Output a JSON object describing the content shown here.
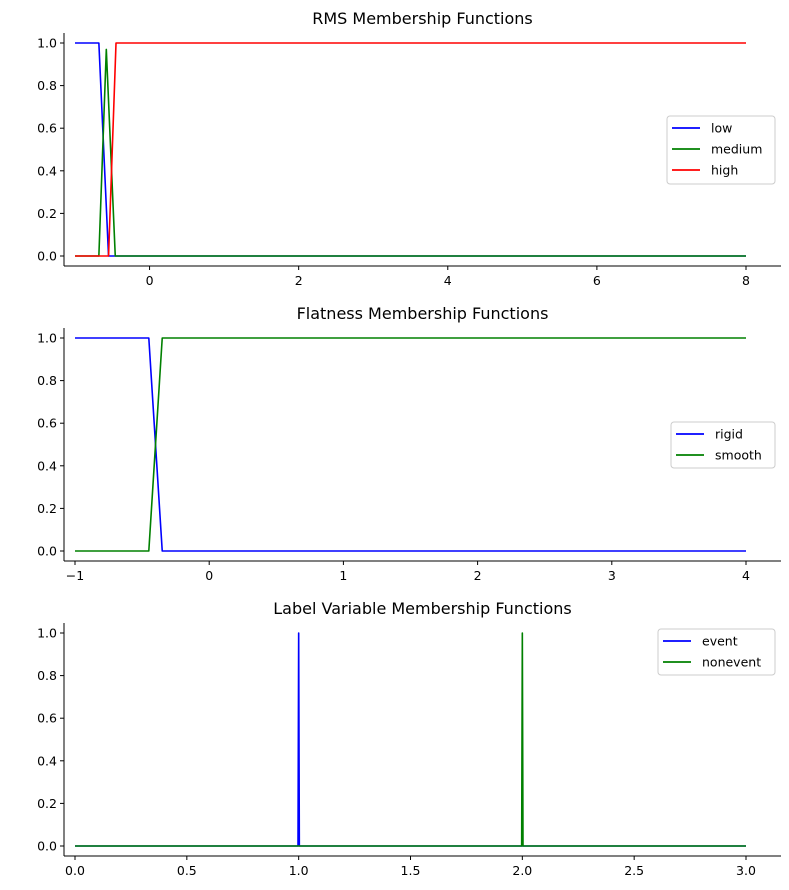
{
  "chart_data": [
    {
      "type": "line",
      "title": "RMS Membership Functions",
      "xlabel": "",
      "ylabel": "",
      "xlim": [
        -1.0,
        8.0
      ],
      "ylim": [
        0,
        1.0
      ],
      "xticks": [
        0,
        2,
        4,
        6,
        8
      ],
      "xtick_labels": [
        "0",
        "2",
        "4",
        "6",
        "8"
      ],
      "yticks": [
        0.0,
        0.2,
        0.4,
        0.6,
        0.8,
        1.0
      ],
      "ytick_labels": [
        "0.0",
        "0.2",
        "0.4",
        "0.6",
        "0.8",
        "1.0"
      ],
      "grid": false,
      "legend_position": "center-right",
      "series": [
        {
          "name": "low",
          "color": "#0000ff",
          "x": [
            -1.0,
            -0.68,
            -0.55,
            -0.5,
            8.0
          ],
          "y": [
            1.0,
            1.0,
            0.0,
            0.0,
            0.0
          ]
        },
        {
          "name": "medium",
          "color": "#008000",
          "x": [
            -1.0,
            -0.68,
            -0.58,
            -0.46,
            8.0
          ],
          "y": [
            0.0,
            0.0,
            0.97,
            0.0,
            0.0
          ]
        },
        {
          "name": "high",
          "color": "#ff0000",
          "x": [
            -1.0,
            -0.55,
            -0.45,
            8.0
          ],
          "y": [
            0.0,
            0.0,
            1.0,
            1.0
          ]
        }
      ]
    },
    {
      "type": "line",
      "title": "Flatness Membership Functions",
      "xlabel": "",
      "ylabel": "",
      "xlim": [
        -1.0,
        4.0
      ],
      "ylim": [
        0,
        1.0
      ],
      "xticks": [
        -1,
        0,
        1,
        2,
        3,
        4
      ],
      "xtick_labels": [
        "−1",
        "0",
        "1",
        "2",
        "3",
        "4"
      ],
      "yticks": [
        0.0,
        0.2,
        0.4,
        0.6,
        0.8,
        1.0
      ],
      "ytick_labels": [
        "0.0",
        "0.2",
        "0.4",
        "0.6",
        "0.8",
        "1.0"
      ],
      "grid": false,
      "legend_position": "center-right",
      "series": [
        {
          "name": "rigid",
          "color": "#0000ff",
          "x": [
            -1.0,
            -0.45,
            -0.35,
            4.0
          ],
          "y": [
            1.0,
            1.0,
            0.0,
            0.0
          ]
        },
        {
          "name": "smooth",
          "color": "#008000",
          "x": [
            -1.0,
            -0.45,
            -0.35,
            4.0
          ],
          "y": [
            0.0,
            0.0,
            1.0,
            1.0
          ]
        }
      ]
    },
    {
      "type": "line",
      "title": "Label Variable Membership Functions",
      "xlabel": "",
      "ylabel": "",
      "xlim": [
        0.0,
        3.0
      ],
      "ylim": [
        0,
        1.0
      ],
      "xticks": [
        0.0,
        0.5,
        1.0,
        1.5,
        2.0,
        2.5,
        3.0
      ],
      "xtick_labels": [
        "0.0",
        "0.5",
        "1.0",
        "1.5",
        "2.0",
        "2.5",
        "3.0"
      ],
      "yticks": [
        0.0,
        0.2,
        0.4,
        0.6,
        0.8,
        1.0
      ],
      "ytick_labels": [
        "0.0",
        "0.2",
        "0.4",
        "0.6",
        "0.8",
        "1.0"
      ],
      "grid": false,
      "legend_position": "top-right",
      "series": [
        {
          "name": "event",
          "color": "#0000ff",
          "x": [
            0.0,
            0.997,
            1.0,
            1.003,
            3.0
          ],
          "y": [
            0.0,
            0.0,
            1.0,
            0.0,
            0.0
          ]
        },
        {
          "name": "nonevent",
          "color": "#008000",
          "x": [
            0.0,
            1.997,
            2.0,
            2.003,
            3.0
          ],
          "y": [
            0.0,
            0.0,
            1.0,
            0.0,
            0.0
          ]
        }
      ]
    }
  ]
}
